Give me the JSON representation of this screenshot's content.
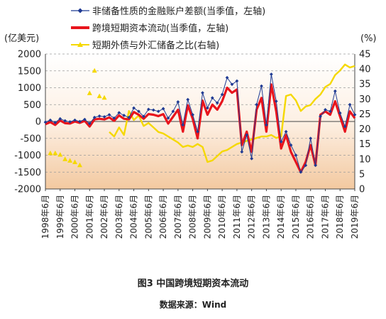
{
  "caption": {
    "title": "图3  中国跨境短期资本流动",
    "source": "数据来源：Wind"
  },
  "chart_data": {
    "type": "line",
    "title": "",
    "left_axis": {
      "unit": "(亿美元)",
      "ylim": [
        -2000,
        2000
      ],
      "ticks": [
        "2000",
        "1500",
        "1000",
        "500",
        "0",
        "-500",
        "-1000",
        "-1500",
        "-2000"
      ]
    },
    "right_axis": {
      "unit": "(%)",
      "ylim": [
        0,
        45
      ],
      "ticks": [
        "45",
        "40",
        "35",
        "30",
        "25",
        "20",
        "15",
        "10",
        "5",
        "0"
      ]
    },
    "x_axis": {
      "range": [
        "1998-06",
        "2019-06"
      ],
      "ticks": [
        "1998年6月",
        "1999年6月",
        "2000年6月",
        "2001年6月",
        "2002年6月",
        "2003年6月",
        "2004年6月",
        "2005年6月",
        "2006年6月",
        "2007年6月",
        "2008年6月",
        "2009年6月",
        "2010年6月",
        "2011年6月",
        "2012年6月",
        "2013年6月",
        "2014年6月",
        "2015年6月",
        "2016年6月",
        "2017年6月",
        "2018年6月",
        "2019年6月"
      ]
    },
    "grid": "horizontal dashed",
    "legend_position": "top",
    "colors": {
      "series1": "#1f3a93",
      "series2": "#e8141c",
      "series3": "#f5d800",
      "background_top": "#ffffff",
      "background_bottom": "#f3c9a0"
    },
    "series": [
      {
        "name": "非储备性质的金融账户差额(当季值，左轴)",
        "axis": "left",
        "style": "line-marker",
        "points": [
          [
            "1998-06",
            -20
          ],
          [
            "1998-10",
            40
          ],
          [
            "1999-02",
            -30
          ],
          [
            "1999-06",
            80
          ],
          [
            "1999-10",
            20
          ],
          [
            "2000-02",
            -10
          ],
          [
            "2000-06",
            40
          ],
          [
            "2000-10",
            0
          ],
          [
            "2001-02",
            60
          ],
          [
            "2001-06",
            -60
          ],
          [
            "2001-10",
            120
          ],
          [
            "2002-02",
            160
          ],
          [
            "2002-06",
            140
          ],
          [
            "2002-10",
            200
          ],
          [
            "2003-02",
            100
          ],
          [
            "2003-06",
            260
          ],
          [
            "2003-10",
            180
          ],
          [
            "2004-02",
            120
          ],
          [
            "2004-06",
            400
          ],
          [
            "2004-10",
            300
          ],
          [
            "2005-02",
            150
          ],
          [
            "2005-06",
            360
          ],
          [
            "2005-10",
            340
          ],
          [
            "2006-02",
            300
          ],
          [
            "2006-06",
            380
          ],
          [
            "2006-10",
            100
          ],
          [
            "2007-02",
            300
          ],
          [
            "2007-06",
            580
          ],
          [
            "2007-10",
            -100
          ],
          [
            "2008-02",
            650
          ],
          [
            "2008-06",
            200
          ],
          [
            "2008-10",
            -300
          ],
          [
            "2009-02",
            850
          ],
          [
            "2009-06",
            400
          ],
          [
            "2009-10",
            700
          ],
          [
            "2010-02",
            550
          ],
          [
            "2010-06",
            800
          ],
          [
            "2010-10",
            1300
          ],
          [
            "2011-02",
            1100
          ],
          [
            "2011-06",
            1200
          ],
          [
            "2011-10",
            -900
          ],
          [
            "2012-02",
            -400
          ],
          [
            "2012-06",
            -1100
          ],
          [
            "2012-10",
            500
          ],
          [
            "2013-02",
            1050
          ],
          [
            "2013-06",
            -100
          ],
          [
            "2013-10",
            1400
          ],
          [
            "2014-02",
            600
          ],
          [
            "2014-06",
            -600
          ],
          [
            "2014-10",
            -300
          ],
          [
            "2015-02",
            -700
          ],
          [
            "2015-06",
            -1000
          ],
          [
            "2015-10",
            -1500
          ],
          [
            "2016-02",
            -1300
          ],
          [
            "2016-06",
            -500
          ],
          [
            "2016-10",
            -1300
          ],
          [
            "2017-02",
            150
          ],
          [
            "2017-06",
            350
          ],
          [
            "2017-10",
            300
          ],
          [
            "2018-02",
            900
          ],
          [
            "2018-06",
            250
          ],
          [
            "2018-10",
            -150
          ],
          [
            "2019-02",
            500
          ],
          [
            "2019-06",
            200
          ]
        ]
      },
      {
        "name": "跨境短期资本流动(当季值，左轴)",
        "axis": "left",
        "style": "thick-line",
        "points": [
          [
            "1998-06",
            -80
          ],
          [
            "1998-10",
            -20
          ],
          [
            "1999-02",
            -100
          ],
          [
            "1999-06",
            30
          ],
          [
            "1999-10",
            -50
          ],
          [
            "2000-02",
            -60
          ],
          [
            "2000-06",
            0
          ],
          [
            "2000-10",
            -40
          ],
          [
            "2001-02",
            20
          ],
          [
            "2001-06",
            -150
          ],
          [
            "2001-10",
            60
          ],
          [
            "2002-02",
            80
          ],
          [
            "2002-06",
            60
          ],
          [
            "2002-10",
            120
          ],
          [
            "2003-02",
            20
          ],
          [
            "2003-06",
            180
          ],
          [
            "2003-10",
            80
          ],
          [
            "2004-02",
            60
          ],
          [
            "2004-06",
            280
          ],
          [
            "2004-10",
            200
          ],
          [
            "2005-02",
            80
          ],
          [
            "2005-06",
            220
          ],
          [
            "2005-10",
            200
          ],
          [
            "2006-02",
            160
          ],
          [
            "2006-06",
            220
          ],
          [
            "2006-10",
            -60
          ],
          [
            "2007-02",
            140
          ],
          [
            "2007-06",
            350
          ],
          [
            "2007-10",
            -300
          ],
          [
            "2008-02",
            480
          ],
          [
            "2008-06",
            80
          ],
          [
            "2008-10",
            -500
          ],
          [
            "2009-02",
            620
          ],
          [
            "2009-06",
            200
          ],
          [
            "2009-10",
            500
          ],
          [
            "2010-02",
            350
          ],
          [
            "2010-06",
            600
          ],
          [
            "2010-10",
            1000
          ],
          [
            "2011-02",
            850
          ],
          [
            "2011-06",
            950
          ],
          [
            "2011-10",
            -700
          ],
          [
            "2012-02",
            -300
          ],
          [
            "2012-06",
            -900
          ],
          [
            "2012-10",
            350
          ],
          [
            "2013-02",
            700
          ],
          [
            "2013-06",
            -300
          ],
          [
            "2013-10",
            1100
          ],
          [
            "2014-02",
            300
          ],
          [
            "2014-06",
            -800
          ],
          [
            "2014-10",
            -400
          ],
          [
            "2015-02",
            -900
          ],
          [
            "2015-06",
            -1200
          ],
          [
            "2015-10",
            -1500
          ],
          [
            "2016-02",
            -1200
          ],
          [
            "2016-06",
            -700
          ],
          [
            "2016-10",
            -1300
          ],
          [
            "2017-02",
            200
          ],
          [
            "2017-06",
            300
          ],
          [
            "2017-10",
            200
          ],
          [
            "2018-02",
            600
          ],
          [
            "2018-06",
            150
          ],
          [
            "2018-10",
            -300
          ],
          [
            "2019-02",
            300
          ],
          [
            "2019-06",
            100
          ]
        ]
      },
      {
        "name": "短期外债与外汇储备之比(右轴)",
        "axis": "right",
        "style": "line-and-markers",
        "points": [
          [
            "2002-10",
            19.0
          ],
          [
            "2003-02",
            17.5
          ],
          [
            "2003-06",
            20.5
          ],
          [
            "2003-10",
            18.0
          ],
          [
            "2004-02",
            26.0
          ],
          [
            "2004-06",
            23.0
          ],
          [
            "2004-10",
            24.5
          ],
          [
            "2005-02",
            21.0
          ],
          [
            "2005-06",
            22.0
          ],
          [
            "2005-10",
            20.5
          ],
          [
            "2006-02",
            19.0
          ],
          [
            "2006-06",
            18.5
          ],
          [
            "2006-10",
            17.5
          ],
          [
            "2007-02",
            16.5
          ],
          [
            "2007-06",
            15.5
          ],
          [
            "2007-10",
            14.0
          ],
          [
            "2008-02",
            14.5
          ],
          [
            "2008-06",
            14.0
          ],
          [
            "2008-10",
            15.0
          ],
          [
            "2009-02",
            14.0
          ],
          [
            "2009-06",
            9.0
          ],
          [
            "2009-10",
            9.5
          ],
          [
            "2010-02",
            11.0
          ],
          [
            "2010-06",
            12.5
          ],
          [
            "2010-10",
            13.0
          ],
          [
            "2011-02",
            14.0
          ],
          [
            "2011-06",
            15.0
          ],
          [
            "2011-10",
            15.5
          ],
          [
            "2012-02",
            16.0
          ],
          [
            "2012-06",
            16.5
          ],
          [
            "2012-10",
            17.0
          ],
          [
            "2013-02",
            17.5
          ],
          [
            "2013-06",
            17.5
          ],
          [
            "2013-10",
            18.0
          ],
          [
            "2014-02",
            17.0
          ],
          [
            "2014-06",
            17.5
          ],
          [
            "2014-10",
            31.0
          ],
          [
            "2015-02",
            31.5
          ],
          [
            "2015-06",
            29.5
          ],
          [
            "2015-10",
            26.0
          ],
          [
            "2016-02",
            27.5
          ],
          [
            "2016-06",
            28.0
          ],
          [
            "2016-10",
            30.0
          ],
          [
            "2017-02",
            31.5
          ],
          [
            "2017-06",
            34.0
          ],
          [
            "2017-10",
            35.0
          ],
          [
            "2018-02",
            38.0
          ],
          [
            "2018-06",
            39.5
          ],
          [
            "2018-10",
            41.5
          ],
          [
            "2019-02",
            40.5
          ],
          [
            "2019-06",
            41.0
          ]
        ],
        "early_markers": [
          [
            "1998-10",
            12.0
          ],
          [
            "1999-02",
            12.0
          ],
          [
            "1999-06",
            11.5
          ],
          [
            "1999-10",
            10.0
          ],
          [
            "2000-02",
            9.5
          ],
          [
            "2000-06",
            9.0
          ],
          [
            "2000-10",
            8.0
          ],
          [
            "2001-06",
            32.0
          ],
          [
            "2001-10",
            39.5
          ],
          [
            "2002-02",
            31.0
          ],
          [
            "2002-06",
            30.5
          ]
        ]
      }
    ]
  }
}
